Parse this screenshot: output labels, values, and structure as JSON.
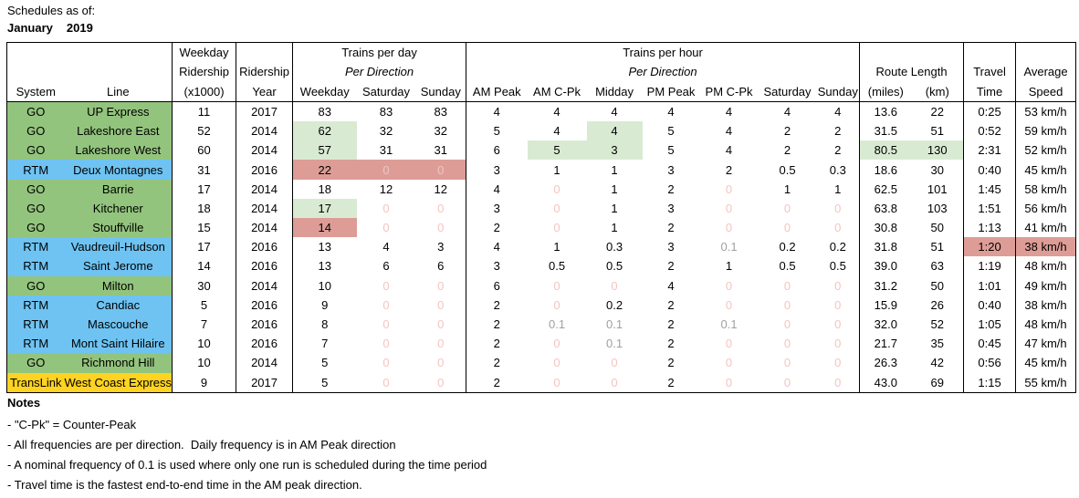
{
  "title": {
    "label": "Schedules as of:",
    "month": "January",
    "year": "2019"
  },
  "colors": {
    "go": "#93c47d",
    "rtm": "#6ec3f2",
    "translink": "#ffd321",
    "hl-green": "#d9ead3",
    "hl-red": "#dd9d96",
    "zero": "#f3c5c3",
    "zero-on-red": "#ecc6c1",
    "nominal": "#a0a0a0"
  },
  "table": {
    "header": {
      "system": "System",
      "line": "Line",
      "ridership_l1": "Weekday",
      "ridership_l2": "Ridership",
      "ridership_l3": "(x1000)",
      "year_l1": "Ridership",
      "year_l2": "Year",
      "per_day_title": "Trains per day",
      "per_hour_title": "Trains per hour",
      "per_direction": "Per Direction",
      "day_cols": [
        "Weekday",
        "Saturday",
        "Sunday"
      ],
      "hour_cols": [
        "AM Peak",
        "AM C-Pk",
        "Midday",
        "PM Peak",
        "PM C-Pk",
        "Saturday",
        "Sunday"
      ],
      "route_title": "Route Length",
      "route_cols": [
        "(miles)",
        "(km)"
      ],
      "travel_l1": "Travel",
      "travel_l2": "Time",
      "speed_l1": "Average",
      "speed_l2": "Speed"
    },
    "rows": [
      {
        "system": "GO",
        "line": "UP Express",
        "org": "go",
        "cells": [
          "11",
          "2017",
          "83",
          "83",
          "83",
          "4",
          "4",
          "4",
          "4",
          "4",
          "4",
          "4",
          "13.6",
          "22",
          "0:25",
          "53 km/h"
        ]
      },
      {
        "system": "GO",
        "line": "Lakeshore East",
        "org": "go",
        "cells": [
          "52",
          "2014",
          {
            "v": "62",
            "c": "hl-green bold"
          },
          "32",
          "32",
          "5",
          "4",
          {
            "v": "4",
            "c": "hl-green bold"
          },
          "5",
          "4",
          "2",
          "2",
          "31.5",
          "51",
          "0:52",
          "59 km/h"
        ]
      },
      {
        "system": "GO",
        "line": "Lakeshore West",
        "org": "go",
        "cells": [
          "60",
          "2014",
          {
            "v": "57",
            "c": "hl-green bold"
          },
          "31",
          "31",
          "6",
          {
            "v": "5",
            "c": "hl-green bold"
          },
          {
            "v": "3",
            "c": "hl-green bold"
          },
          "5",
          "4",
          "2",
          "2",
          {
            "v": "80.5",
            "c": "hl-green bold"
          },
          {
            "v": "130",
            "c": "hl-green bold"
          },
          "2:31",
          "52 km/h"
        ]
      },
      {
        "system": "RTM",
        "line": "Deux Montagnes",
        "org": "rtm",
        "cells": [
          "31",
          "2016",
          {
            "v": "22",
            "c": "hl-red bold"
          },
          {
            "v": "0",
            "c": "hl-red zero-on-red"
          },
          {
            "v": "0",
            "c": "hl-red zero-on-red"
          },
          "3",
          "1",
          "1",
          "3",
          "2",
          "0.5",
          "0.3",
          "18.6",
          "30",
          "0:40",
          "45 km/h"
        ]
      },
      {
        "system": "GO",
        "line": "Barrie",
        "org": "go",
        "cells": [
          "17",
          "2014",
          "18",
          "12",
          "12",
          "4",
          {
            "v": "0",
            "c": "zero"
          },
          "1",
          "2",
          {
            "v": "0",
            "c": "zero"
          },
          "1",
          "1",
          "62.5",
          "101",
          "1:45",
          "58 km/h"
        ]
      },
      {
        "system": "GO",
        "line": "Kitchener",
        "org": "go",
        "cells": [
          "18",
          "2014",
          {
            "v": "17",
            "c": "hl-green bold"
          },
          {
            "v": "0",
            "c": "zero"
          },
          {
            "v": "0",
            "c": "zero"
          },
          "3",
          {
            "v": "0",
            "c": "zero"
          },
          "1",
          "3",
          {
            "v": "0",
            "c": "zero"
          },
          {
            "v": "0",
            "c": "zero"
          },
          {
            "v": "0",
            "c": "zero"
          },
          "63.8",
          "103",
          "1:51",
          "56 km/h"
        ]
      },
      {
        "system": "GO",
        "line": "Stouffville",
        "org": "go",
        "cells": [
          "15",
          "2014",
          {
            "v": "14",
            "c": "hl-red bold"
          },
          {
            "v": "0",
            "c": "zero"
          },
          {
            "v": "0",
            "c": "zero"
          },
          "2",
          {
            "v": "0",
            "c": "zero"
          },
          "1",
          "2",
          {
            "v": "0",
            "c": "zero"
          },
          {
            "v": "0",
            "c": "zero"
          },
          {
            "v": "0",
            "c": "zero"
          },
          "30.8",
          "50",
          "1:13",
          "41 km/h"
        ]
      },
      {
        "system": "RTM",
        "line": "Vaudreuil-Hudson",
        "org": "rtm",
        "cells": [
          "17",
          "2016",
          "13",
          "4",
          "3",
          "4",
          "1",
          "0.3",
          "3",
          {
            "v": "0.1",
            "c": "nominal"
          },
          "0.2",
          "0.2",
          "31.8",
          "51",
          {
            "v": "1:20",
            "c": "hl-red bold"
          },
          {
            "v": "38 km/h",
            "c": "hl-red bold"
          }
        ]
      },
      {
        "system": "RTM",
        "line": "Saint Jerome",
        "org": "rtm",
        "cells": [
          "14",
          "2016",
          "13",
          "6",
          "6",
          "3",
          "0.5",
          "0.5",
          "2",
          "1",
          "0.5",
          "0.5",
          "39.0",
          "63",
          "1:19",
          "48 km/h"
        ]
      },
      {
        "system": "GO",
        "line": "Milton",
        "org": "go",
        "cells": [
          "30",
          "2014",
          "10",
          {
            "v": "0",
            "c": "zero"
          },
          {
            "v": "0",
            "c": "zero"
          },
          "6",
          {
            "v": "0",
            "c": "zero"
          },
          {
            "v": "0",
            "c": "zero"
          },
          "4",
          {
            "v": "0",
            "c": "zero"
          },
          {
            "v": "0",
            "c": "zero"
          },
          {
            "v": "0",
            "c": "zero"
          },
          "31.2",
          "50",
          "1:01",
          "49 km/h"
        ]
      },
      {
        "system": "RTM",
        "line": "Candiac",
        "org": "rtm",
        "cells": [
          "5",
          "2016",
          "9",
          {
            "v": "0",
            "c": "zero"
          },
          {
            "v": "0",
            "c": "zero"
          },
          "2",
          {
            "v": "0",
            "c": "zero"
          },
          "0.2",
          "2",
          {
            "v": "0",
            "c": "zero"
          },
          {
            "v": "0",
            "c": "zero"
          },
          {
            "v": "0",
            "c": "zero"
          },
          "15.9",
          "26",
          "0:40",
          "38 km/h"
        ]
      },
      {
        "system": "RTM",
        "line": "Mascouche",
        "org": "rtm",
        "cells": [
          "7",
          "2016",
          "8",
          {
            "v": "0",
            "c": "zero"
          },
          {
            "v": "0",
            "c": "zero"
          },
          "2",
          {
            "v": "0.1",
            "c": "nominal"
          },
          {
            "v": "0.1",
            "c": "nominal"
          },
          "2",
          {
            "v": "0.1",
            "c": "nominal"
          },
          {
            "v": "0",
            "c": "zero"
          },
          {
            "v": "0",
            "c": "zero"
          },
          "32.0",
          "52",
          "1:05",
          "48 km/h"
        ]
      },
      {
        "system": "RTM",
        "line": "Mont Saint Hilaire",
        "org": "rtm",
        "cells": [
          "10",
          "2016",
          "7",
          {
            "v": "0",
            "c": "zero"
          },
          {
            "v": "0",
            "c": "zero"
          },
          "2",
          {
            "v": "0",
            "c": "zero"
          },
          {
            "v": "0.1",
            "c": "nominal"
          },
          "2",
          {
            "v": "0",
            "c": "zero"
          },
          {
            "v": "0",
            "c": "zero"
          },
          {
            "v": "0",
            "c": "zero"
          },
          "21.7",
          "35",
          "0:45",
          "47 km/h"
        ]
      },
      {
        "system": "GO",
        "line": "Richmond Hill",
        "org": "go",
        "cells": [
          "10",
          "2014",
          "5",
          {
            "v": "0",
            "c": "zero"
          },
          {
            "v": "0",
            "c": "zero"
          },
          "2",
          {
            "v": "0",
            "c": "zero"
          },
          {
            "v": "0",
            "c": "zero"
          },
          "2",
          {
            "v": "0",
            "c": "zero"
          },
          {
            "v": "0",
            "c": "zero"
          },
          {
            "v": "0",
            "c": "zero"
          },
          "26.3",
          "42",
          "0:56",
          "45 km/h"
        ]
      },
      {
        "system": "TransLink",
        "line": "West Coast Express",
        "org": "translink",
        "cells": [
          "9",
          "2017",
          "5",
          {
            "v": "0",
            "c": "zero"
          },
          {
            "v": "0",
            "c": "zero"
          },
          "2",
          {
            "v": "0",
            "c": "zero"
          },
          {
            "v": "0",
            "c": "zero"
          },
          "2",
          {
            "v": "0",
            "c": "zero"
          },
          {
            "v": "0",
            "c": "zero"
          },
          {
            "v": "0",
            "c": "zero"
          },
          "43.0",
          "69",
          "1:15",
          "55 km/h"
        ]
      }
    ]
  },
  "notes": {
    "title": "Notes",
    "items": [
      "- \"C-Pk\" = Counter-Peak",
      "- All frequencies are per direction.  Daily frequency is in AM Peak direction",
      "- A nominal frequency of 0.1 is used where only one run is scheduled during the time period",
      "- Travel time is the fastest end-to-end time in the AM peak direction."
    ]
  }
}
